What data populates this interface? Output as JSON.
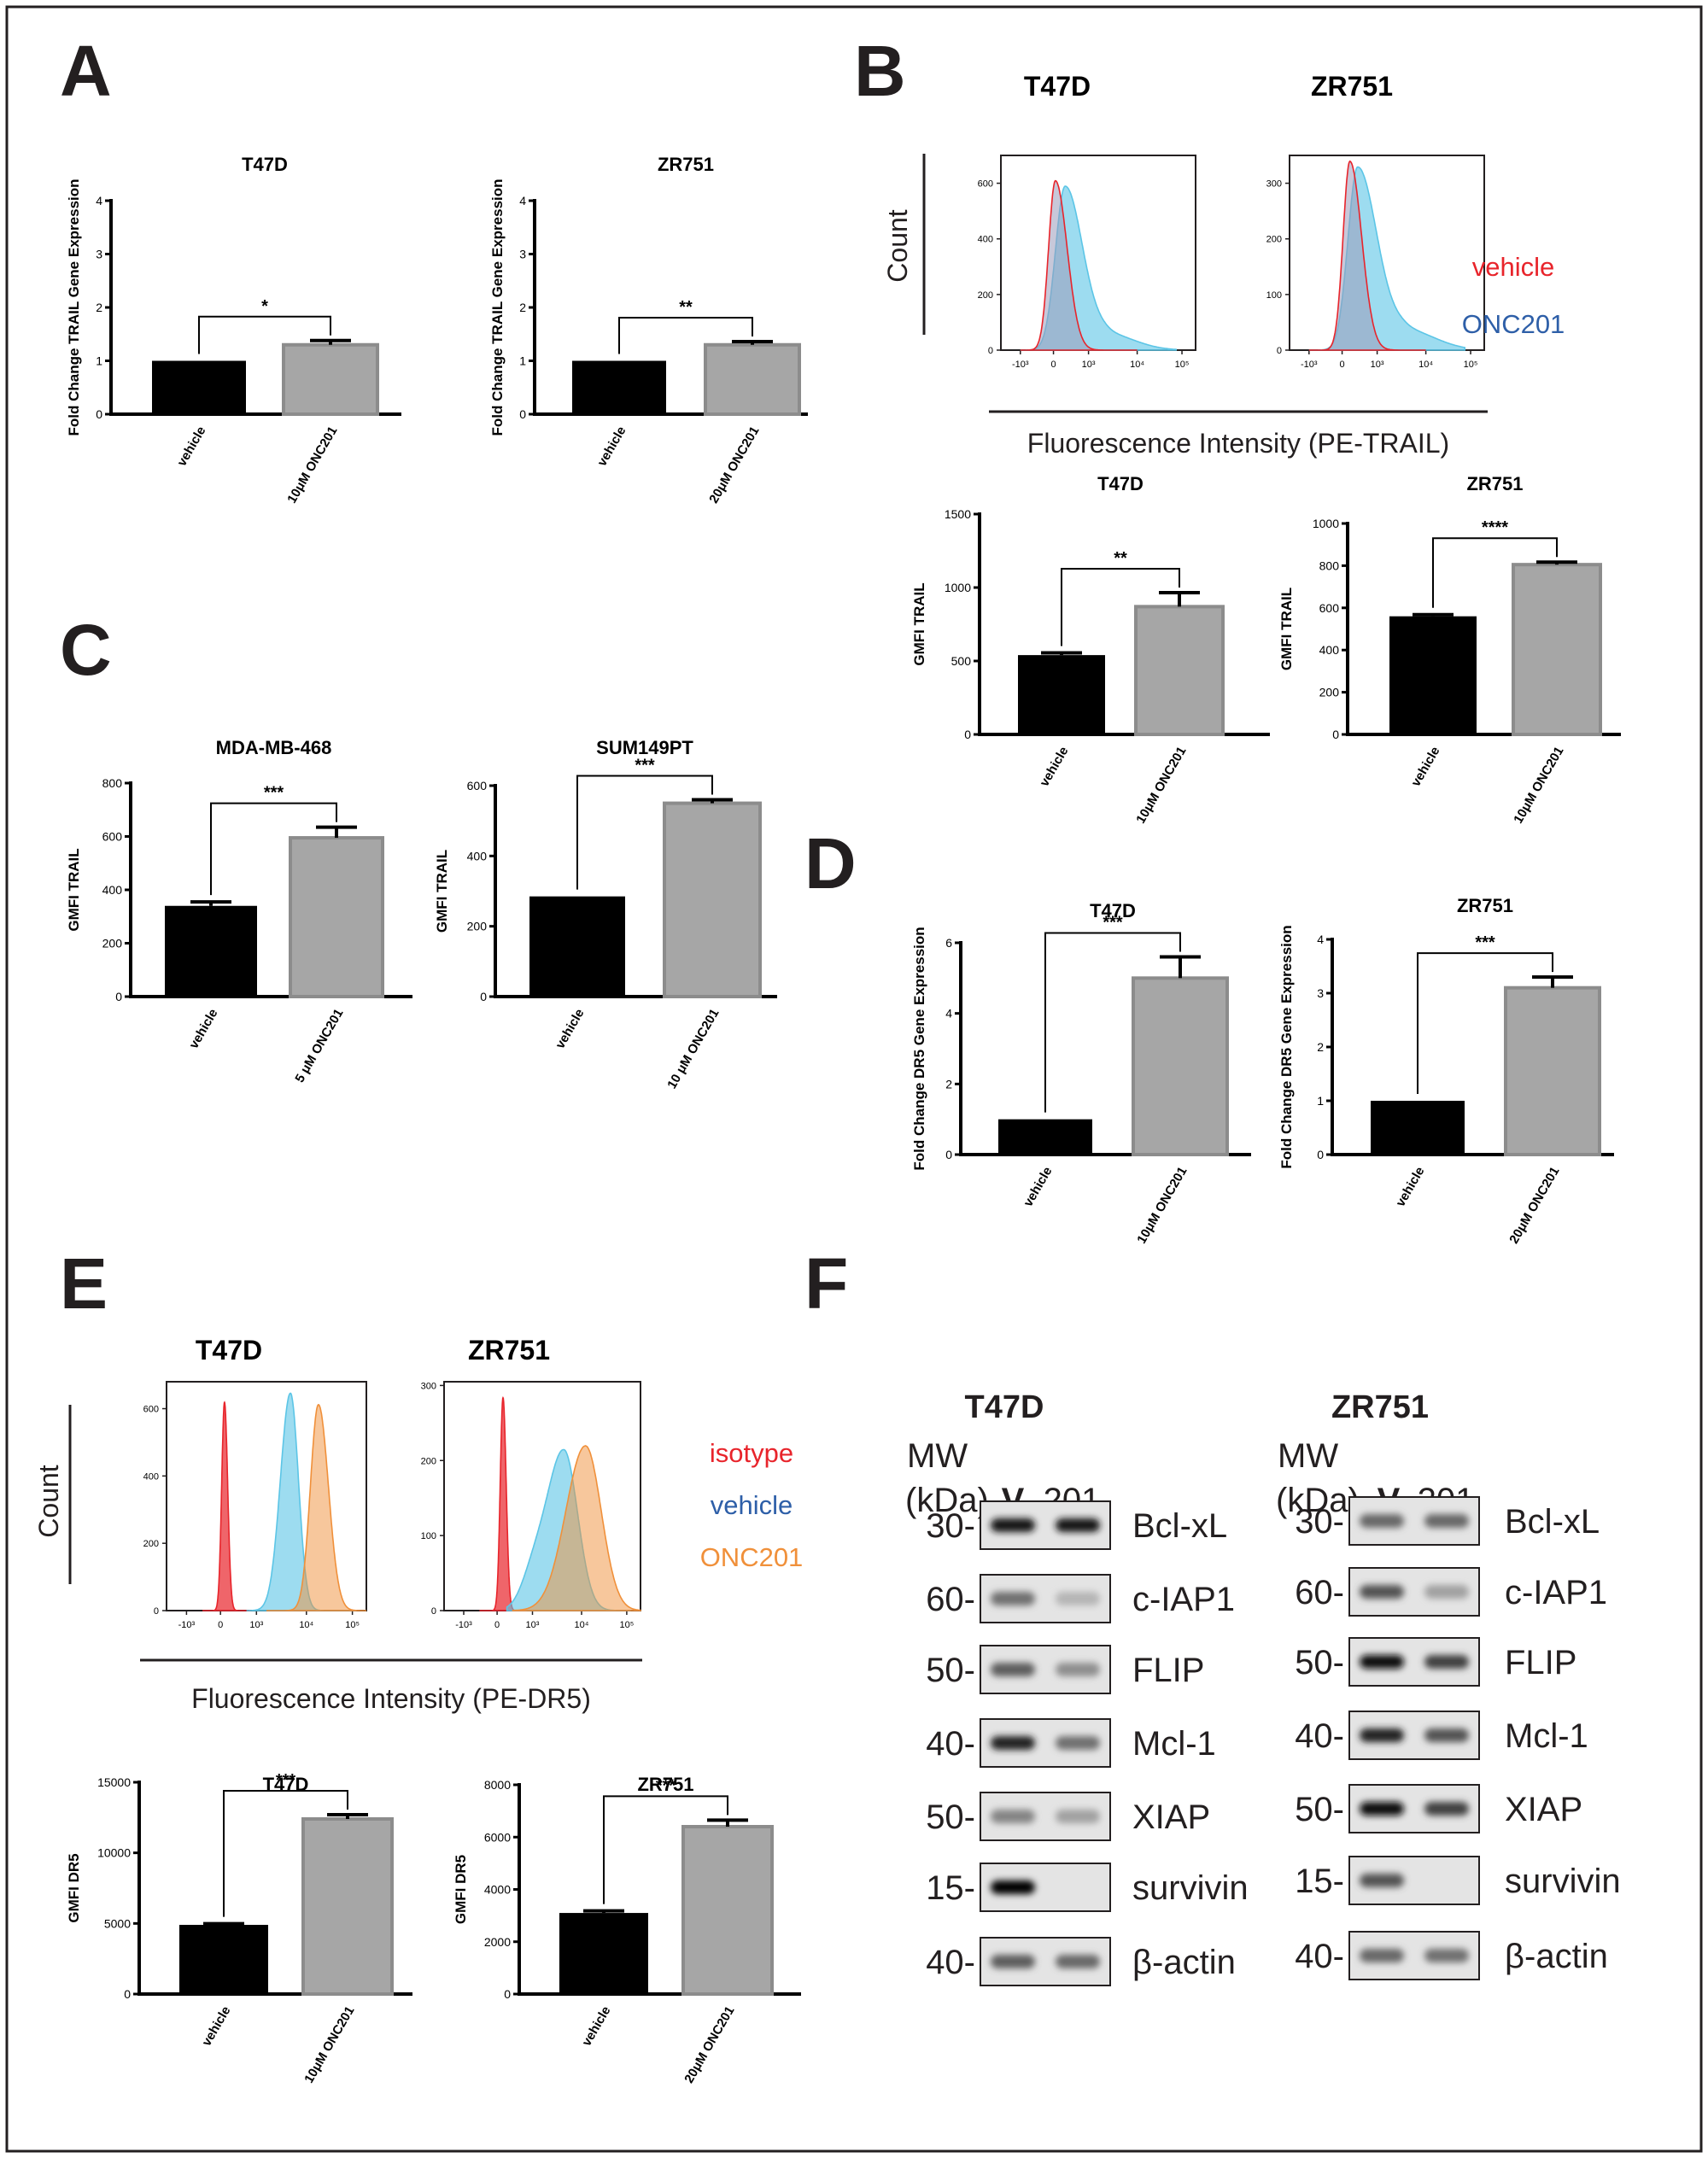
{
  "panels": {
    "A": "A",
    "B": "B",
    "C": "C",
    "D": "D",
    "E": "E",
    "F": "F"
  },
  "colors": {
    "vehicle_bar": "#000000",
    "treated_bar": "#a6a6a6",
    "red": "#e8242b",
    "cyan": "#5cc5e6",
    "blue": "#2e5fa8",
    "orange": "#f0903a"
  },
  "chart_data": [
    {
      "id": "A1",
      "type": "bar",
      "title": "T47D",
      "ylabel": "Fold Change TRAIL Gene Expression",
      "categories": [
        "vehicle",
        "10μM ONC201"
      ],
      "values": [
        1.0,
        1.3
      ],
      "errors": [
        0,
        0.08
      ],
      "ylim": [
        0,
        4
      ],
      "yticks": [
        "0",
        "1",
        "2",
        "3",
        "4"
      ],
      "significance": "*"
    },
    {
      "id": "A2",
      "type": "bar",
      "title": "ZR751",
      "ylabel": "Fold Change TRAIL Gene Expression",
      "categories": [
        "vehicle",
        "20μM ONC201"
      ],
      "values": [
        1.0,
        1.3
      ],
      "errors": [
        0,
        0.06
      ],
      "ylim": [
        0,
        4
      ],
      "yticks": [
        "0",
        "1",
        "2",
        "3",
        "4"
      ],
      "significance": "**"
    },
    {
      "id": "B1",
      "type": "bar",
      "title": "T47D",
      "ylabel": "GMFI TRAIL",
      "categories": [
        "vehicle",
        "10μM ONC201"
      ],
      "values": [
        540,
        870
      ],
      "errors": [
        15,
        95
      ],
      "ylim": [
        0,
        1500
      ],
      "yticks": [
        "0",
        "500",
        "1000",
        "1500"
      ],
      "significance": "**"
    },
    {
      "id": "B2",
      "type": "bar",
      "title": "ZR751",
      "ylabel": "GMFI TRAIL",
      "categories": [
        "vehicle",
        "10μM ONC201"
      ],
      "values": [
        560,
        805
      ],
      "errors": [
        8,
        12
      ],
      "ylim": [
        0,
        1000
      ],
      "yticks": [
        "0",
        "200",
        "400",
        "600",
        "800",
        "1000"
      ],
      "significance": "****"
    },
    {
      "id": "C1",
      "type": "bar",
      "title": "MDA-MB-468",
      "ylabel": "GMFI TRAIL",
      "categories": [
        "vehicle",
        "5 μM ONC201"
      ],
      "values": [
        340,
        595
      ],
      "errors": [
        15,
        40
      ],
      "ylim": [
        0,
        800
      ],
      "yticks": [
        "0",
        "200",
        "400",
        "600",
        "800"
      ],
      "significance": "***"
    },
    {
      "id": "C2",
      "type": "bar",
      "title": "SUM149PT",
      "ylabel": "GMFI TRAIL",
      "categories": [
        "vehicle",
        "10 μM ONC201"
      ],
      "values": [
        285,
        550
      ],
      "errors": [
        0,
        10
      ],
      "ylim": [
        0,
        600
      ],
      "yticks": [
        "0",
        "200",
        "400",
        "600"
      ],
      "significance": "***"
    },
    {
      "id": "D1",
      "type": "bar",
      "title": "T47D",
      "ylabel": "Fold Change DR5 Gene Expression",
      "categories": [
        "vehicle",
        "10μM ONC201"
      ],
      "values": [
        1.0,
        5.0
      ],
      "errors": [
        0,
        0.6
      ],
      "ylim": [
        0,
        6
      ],
      "yticks": [
        "0",
        "2",
        "4",
        "6"
      ],
      "significance": "***"
    },
    {
      "id": "D2",
      "type": "bar",
      "title": "ZR751",
      "ylabel": "Fold Change DR5 Gene Expression",
      "categories": [
        "vehicle",
        "20μM ONC201"
      ],
      "values": [
        1.0,
        3.1
      ],
      "errors": [
        0,
        0.2
      ],
      "ylim": [
        0,
        4
      ],
      "yticks": [
        "0",
        "1",
        "2",
        "3",
        "4"
      ],
      "significance": "***"
    },
    {
      "id": "E1",
      "type": "bar",
      "title": "T47D",
      "ylabel": "GMFI DR5",
      "categories": [
        "vehicle",
        "10μM ONC201"
      ],
      "values": [
        4900,
        12400
      ],
      "errors": [
        80,
        300
      ],
      "ylim": [
        0,
        15000
      ],
      "yticks": [
        "0",
        "5000",
        "10000",
        "15000"
      ],
      "significance": "***"
    },
    {
      "id": "E2",
      "type": "bar",
      "title": "ZR751",
      "ylabel": "GMFI DR5",
      "categories": [
        "vehicle",
        "20μM ONC201"
      ],
      "values": [
        3100,
        6400
      ],
      "errors": [
        80,
        250
      ],
      "ylim": [
        0,
        8000
      ],
      "yticks": [
        "0",
        "2000",
        "4000",
        "6000",
        "8000"
      ],
      "significance": "***"
    }
  ],
  "histograms": {
    "B": {
      "titles": [
        "T47D",
        "ZR751"
      ],
      "count_label": "Count",
      "x_title": "Fluorescence Intensity (PE-TRAIL)",
      "legend": [
        "vehicle",
        "ONC201"
      ],
      "y_ticks_1": [
        "0",
        "200",
        "400",
        "600"
      ],
      "ymax_1": 700,
      "y_ticks_2": [
        "0",
        "100",
        "200",
        "300"
      ],
      "ymax_2": 350,
      "x_ticks": [
        "-10³",
        "0",
        "10³",
        "10⁴",
        "10⁵"
      ]
    },
    "E": {
      "titles": [
        "T47D",
        "ZR751"
      ],
      "count_label": "Count",
      "x_title": "Fluorescence Intensity (PE-DR5)",
      "legend": [
        "isotype",
        "vehicle",
        "ONC201"
      ],
      "y_ticks_1": [
        "0",
        "200",
        "400",
        "600"
      ],
      "ymax_1": 680,
      "y_ticks_2": [
        "0",
        "100",
        "200",
        "300"
      ],
      "ymax_2": 305,
      "x_ticks": [
        "-10³",
        "0",
        "10³",
        "10⁴",
        "10⁵"
      ]
    }
  },
  "western": {
    "mw_label": [
      "MW",
      "(kDa)"
    ],
    "lanes": [
      "V",
      "201"
    ],
    "cells": [
      {
        "title": "T47D",
        "rows": [
          {
            "mw": "30-",
            "protein": "Bcl-xL",
            "bands": [
              0.9,
              0.9
            ]
          },
          {
            "mw": "60-",
            "protein": "c-IAP1",
            "bands": [
              0.45,
              0.1
            ]
          },
          {
            "mw": "50-",
            "protein": "FLIP",
            "bands": [
              0.55,
              0.3
            ]
          },
          {
            "mw": "40-",
            "protein": "Mcl-1",
            "bands": [
              0.85,
              0.45
            ]
          },
          {
            "mw": "50-",
            "protein": "XIAP",
            "bands": [
              0.35,
              0.2
            ]
          },
          {
            "mw": "15-",
            "protein": "survivin",
            "bands": [
              1.0,
              0.0
            ]
          },
          {
            "mw": "40-",
            "protein": "β-actin",
            "bands": [
              0.55,
              0.5
            ]
          }
        ]
      },
      {
        "title": "ZR751",
        "rows": [
          {
            "mw": "30-",
            "protein": "Bcl-xL",
            "bands": [
              0.5,
              0.5
            ]
          },
          {
            "mw": "60-",
            "protein": "c-IAP1",
            "bands": [
              0.6,
              0.2
            ]
          },
          {
            "mw": "50-",
            "protein": "FLIP",
            "bands": [
              0.95,
              0.7
            ]
          },
          {
            "mw": "40-",
            "protein": "Mcl-1",
            "bands": [
              0.85,
              0.6
            ]
          },
          {
            "mw": "50-",
            "protein": "XIAP",
            "bands": [
              0.95,
              0.7
            ]
          },
          {
            "mw": "15-",
            "protein": "survivin",
            "bands": [
              0.6,
              0.0
            ]
          },
          {
            "mw": "40-",
            "protein": "β-actin",
            "bands": [
              0.5,
              0.45
            ]
          }
        ]
      }
    ]
  }
}
